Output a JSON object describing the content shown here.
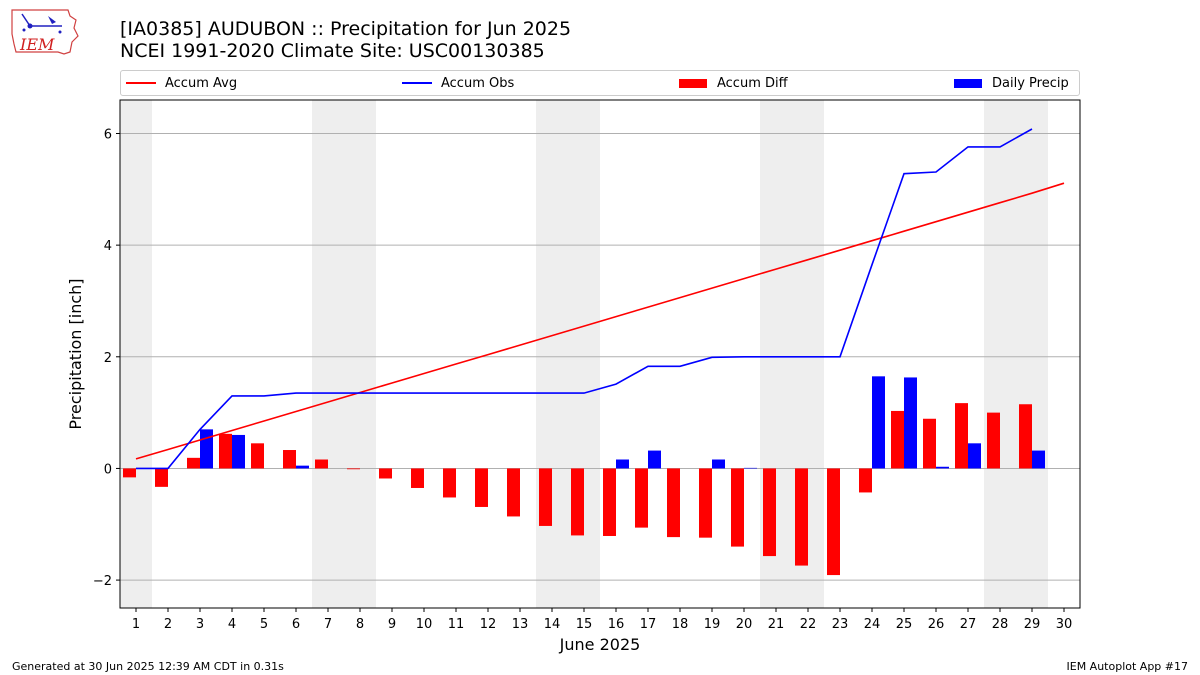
{
  "header": {
    "title_line1": "[IA0385] AUDUBON :: Precipitation for Jun 2025",
    "title_line2": "NCEI 1991-2020 Climate Site: USC00130385",
    "logo_text": "IEM"
  },
  "legend": {
    "accum_avg": "Accum Avg",
    "accum_obs": "Accum Obs",
    "accum_diff": "Accum Diff",
    "daily_precip": "Daily Precip"
  },
  "footer": {
    "generated": "Generated at 30 Jun 2025 12:39 AM CDT in 0.31s",
    "app": "IEM Autoplot App #17"
  },
  "chart_data": {
    "type": "bar",
    "title": "[IA0385] AUDUBON :: Precipitation for Jun 2025",
    "subtitle": "NCEI 1991-2020 Climate Site: USC00130385",
    "xlabel": "June 2025",
    "ylabel": "Precipitation [inch]",
    "ylim": [
      -2.5,
      6.6
    ],
    "xlim": [
      0.5,
      30.5
    ],
    "y_ticks": [
      -2,
      0,
      2,
      4,
      6
    ],
    "y_tick_labels": [
      "−2",
      "0",
      "2",
      "4",
      "6"
    ],
    "categories": [
      1,
      2,
      3,
      4,
      5,
      6,
      7,
      8,
      9,
      10,
      11,
      12,
      13,
      14,
      15,
      16,
      17,
      18,
      19,
      20,
      21,
      22,
      23,
      24,
      25,
      26,
      27,
      28,
      29,
      30
    ],
    "grid": true,
    "legend_position": "top",
    "weekend_shading": [
      [
        0.5,
        1.5
      ],
      [
        6.5,
        8.5
      ],
      [
        13.5,
        15.5
      ],
      [
        20.5,
        22.5
      ],
      [
        27.5,
        29.5
      ]
    ],
    "colors": {
      "avg": "#ff0000",
      "obs": "#0000ff",
      "diff": "#ff0000",
      "daily": "#0000ff",
      "shade": "#eeeeee",
      "grid": "#b0b0b0"
    },
    "series": [
      {
        "name": "Accum Avg",
        "type": "line",
        "values": [
          0.17,
          0.34,
          0.51,
          0.68,
          0.85,
          1.02,
          1.19,
          1.36,
          1.53,
          1.7,
          1.87,
          2.04,
          2.21,
          2.38,
          2.55,
          2.72,
          2.89,
          3.06,
          3.23,
          3.4,
          3.57,
          3.74,
          3.91,
          4.08,
          4.25,
          4.42,
          4.59,
          4.76,
          4.93,
          5.11
        ]
      },
      {
        "name": "Accum Obs",
        "type": "line",
        "values": [
          0.0,
          0.0,
          0.7,
          1.3,
          1.3,
          1.35,
          1.35,
          1.35,
          1.35,
          1.35,
          1.35,
          1.35,
          1.35,
          1.35,
          1.35,
          1.51,
          1.83,
          1.83,
          1.99,
          2.0,
          2.0,
          2.0,
          2.0,
          3.65,
          5.28,
          5.31,
          5.76,
          5.76,
          6.08,
          null
        ]
      },
      {
        "name": "Accum Diff",
        "type": "bar",
        "values": [
          -0.16,
          -0.33,
          0.19,
          0.62,
          0.45,
          0.33,
          0.16,
          -0.01,
          -0.18,
          -0.35,
          -0.52,
          -0.69,
          -0.86,
          -1.03,
          -1.2,
          -1.21,
          -1.06,
          -1.23,
          -1.24,
          -1.4,
          -1.57,
          -1.74,
          -1.91,
          -0.43,
          1.03,
          0.89,
          1.17,
          1.0,
          1.15,
          null
        ]
      },
      {
        "name": "Daily Precip",
        "type": "bar",
        "values": [
          0,
          0,
          0.7,
          0.6,
          0,
          0.05,
          0,
          0,
          0,
          0,
          0,
          0,
          0,
          0,
          0,
          0.16,
          0.32,
          0,
          0.16,
          0.01,
          0,
          0,
          0,
          1.65,
          1.63,
          0.03,
          0.45,
          0,
          0.32,
          null
        ]
      }
    ]
  }
}
